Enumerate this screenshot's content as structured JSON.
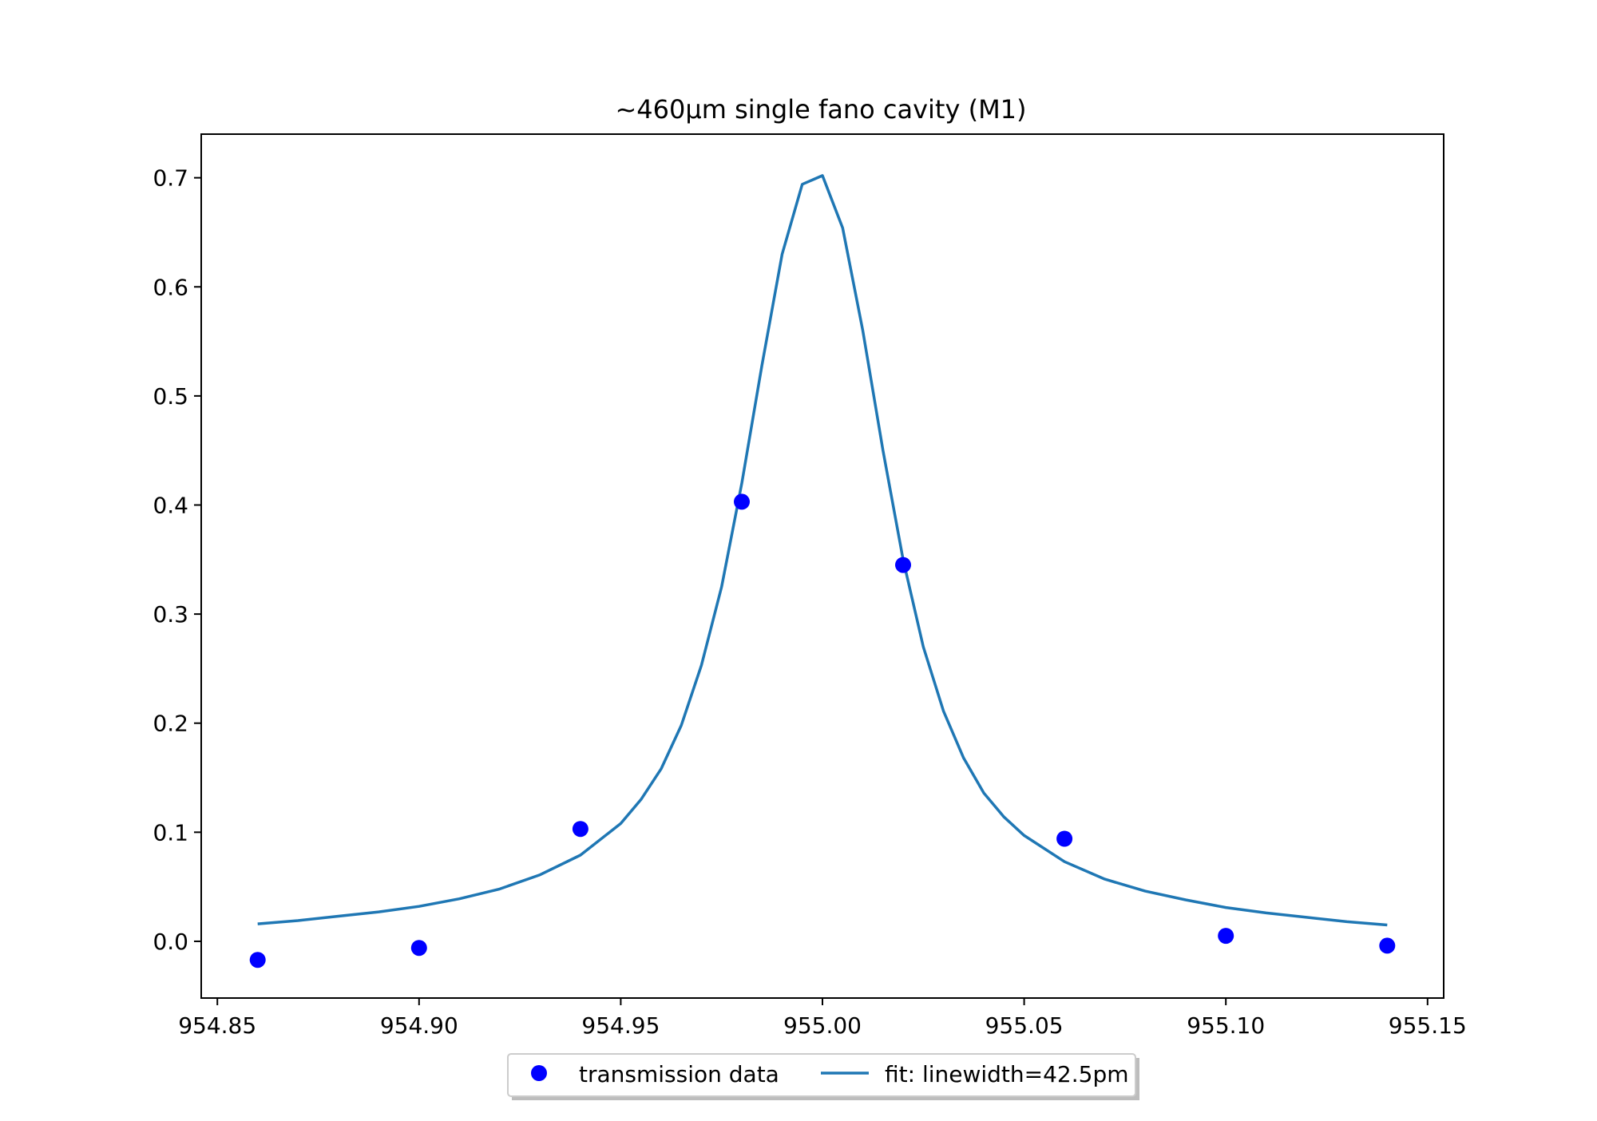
{
  "chart_data": {
    "type": "scatter",
    "title": "~460µm single fano cavity (M1)",
    "xlabel": "",
    "ylabel": "",
    "xlim": [
      954.846,
      955.154
    ],
    "ylim": [
      -0.052,
      0.74
    ],
    "xticks": [
      954.85,
      954.9,
      954.95,
      955.0,
      955.05,
      955.1,
      955.15
    ],
    "xtick_labels": [
      "954.85",
      "954.90",
      "954.95",
      "955.00",
      "955.05",
      "955.10",
      "955.15"
    ],
    "yticks": [
      0.0,
      0.1,
      0.2,
      0.3,
      0.4,
      0.5,
      0.6,
      0.7
    ],
    "ytick_labels": [
      "0.0",
      "0.1",
      "0.2",
      "0.3",
      "0.4",
      "0.5",
      "0.6",
      "0.7"
    ],
    "grid": false,
    "legend_position": "below plot, centered",
    "series": [
      {
        "name": "transmission data",
        "kind": "scatter",
        "color": "#0000ff",
        "x": [
          954.86,
          954.9,
          954.94,
          954.98,
          955.02,
          955.06,
          955.1,
          955.14
        ],
        "y": [
          -0.017,
          -0.006,
          0.103,
          0.403,
          0.345,
          0.094,
          0.005,
          -0.004
        ]
      },
      {
        "name": "fit: linewidth=42.5pm",
        "kind": "line",
        "color": "#1f77b4",
        "x": [
          954.86,
          954.87,
          954.88,
          954.89,
          954.9,
          954.91,
          954.92,
          954.93,
          954.94,
          954.95,
          954.955,
          954.96,
          954.965,
          954.97,
          954.975,
          954.98,
          954.985,
          954.99,
          954.995,
          955.0,
          955.005,
          955.01,
          955.015,
          955.02,
          955.025,
          955.03,
          955.035,
          955.04,
          955.045,
          955.05,
          955.06,
          955.07,
          955.08,
          955.09,
          955.1,
          955.11,
          955.12,
          955.13,
          955.14
        ],
        "y": [
          0.016,
          0.019,
          0.023,
          0.027,
          0.032,
          0.039,
          0.048,
          0.061,
          0.079,
          0.108,
          0.13,
          0.158,
          0.198,
          0.253,
          0.325,
          0.42,
          0.528,
          0.63,
          0.694,
          0.702,
          0.654,
          0.56,
          0.45,
          0.35,
          0.27,
          0.211,
          0.168,
          0.136,
          0.114,
          0.097,
          0.073,
          0.057,
          0.046,
          0.038,
          0.031,
          0.026,
          0.022,
          0.018,
          0.015
        ]
      }
    ]
  }
}
